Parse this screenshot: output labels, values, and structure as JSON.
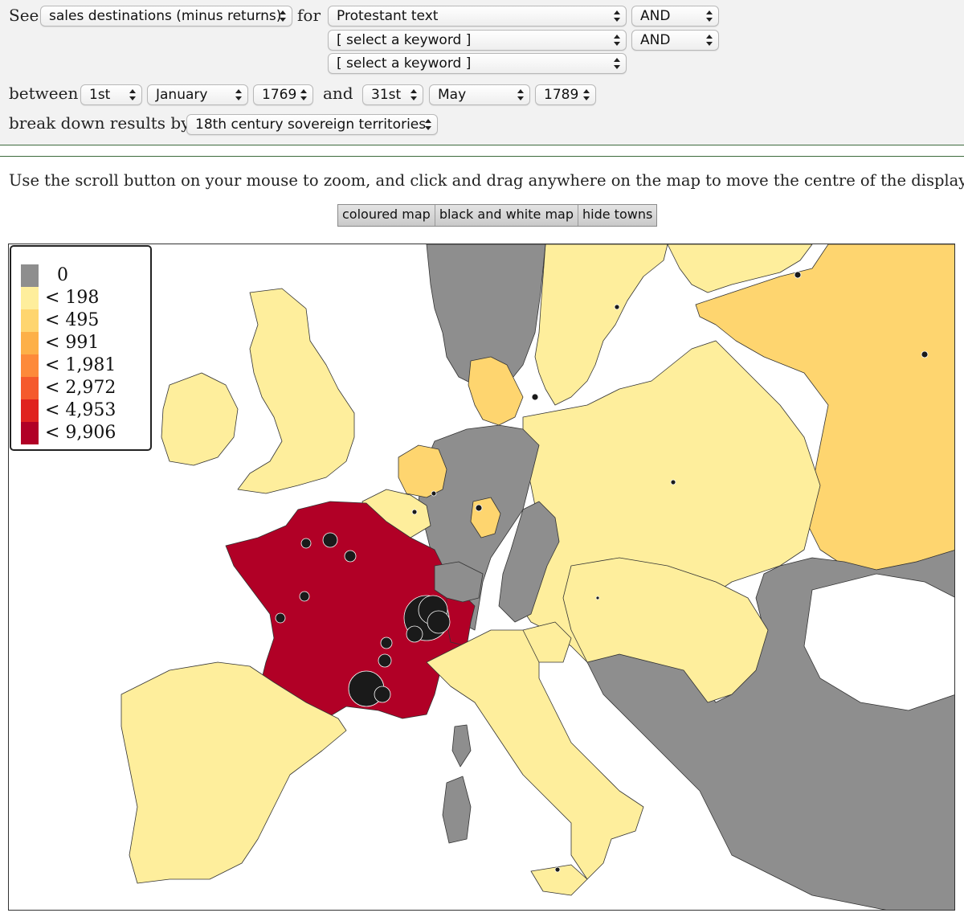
{
  "query": {
    "see_label": "See",
    "for_label": "for",
    "between_label": "between",
    "and_label": "and",
    "breakdown_label": "break down results by",
    "measure_select": "sales destinations (minus returns)",
    "keywords": [
      "Protestant text",
      "[ select a keyword ]",
      "[ select a keyword ]"
    ],
    "operators": [
      "AND",
      "AND"
    ],
    "start_day": "1st",
    "start_month": "January",
    "start_year": "1769",
    "end_day": "31st",
    "end_month": "May",
    "end_year": "1789",
    "breakdown_select": "18th century sovereign territories"
  },
  "instructions": "Use the scroll button on your mouse to zoom, and click and drag anywhere on the map to move the centre of the display.",
  "map_buttons": [
    "coloured map",
    "black and white map",
    "hide towns"
  ],
  "legend": {
    "entries": [
      {
        "label": "0",
        "color": "#8e8e8e"
      },
      {
        "label": "< 198",
        "color": "#feee9c"
      },
      {
        "label": "< 495",
        "color": "#fed56f"
      },
      {
        "label": "< 991",
        "color": "#fdb048"
      },
      {
        "label": "< 1,981",
        "color": "#fd8a3a"
      },
      {
        "label": "< 2,972",
        "color": "#f55a2c"
      },
      {
        "label": "< 4,953",
        "color": "#e0231f"
      },
      {
        "label": "< 9,906",
        "color": "#b10026"
      }
    ]
  },
  "map_colors": {
    "sea": "#ffffff",
    "none": "#8e8e8e",
    "low": "#feee9c",
    "mid": "#fed56f",
    "france": "#b10026",
    "border": "#333333",
    "town_dot": "#1a1a1a"
  }
}
